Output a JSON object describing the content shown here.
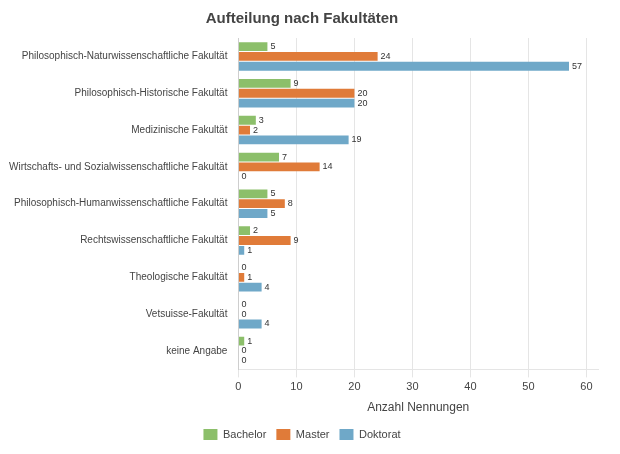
{
  "chart_data": {
    "type": "bar",
    "orientation": "horizontal",
    "title": "Aufteilung nach Fakultäten",
    "xlabel": "Anzahl Nennungen",
    "categories": [
      "Philosophisch-Naturwissenschaftliche Fakultät",
      "Philosophisch-Historische Fakultät",
      "Medizinische Fakultät",
      "Wirtschafts- und Sozialwissenschaftliche Fakultät",
      "Philosophisch-Humanwissenschaftliche Fakultät",
      "Rechtswissenschaftliche Fakultät",
      "Theologische Fakultät",
      "Vetsuisse-Fakultät",
      "keine Angabe"
    ],
    "series": [
      {
        "name": "Bachelor",
        "color": "#8CBF6A",
        "values": [
          5,
          9,
          3,
          7,
          5,
          2,
          0,
          0,
          1
        ]
      },
      {
        "name": "Master",
        "color": "#E07B39",
        "values": [
          24,
          20,
          2,
          14,
          8,
          9,
          1,
          0,
          0
        ]
      },
      {
        "name": "Doktorat",
        "color": "#6FA8C8",
        "values": [
          57,
          20,
          19,
          0,
          5,
          1,
          4,
          4,
          0
        ]
      }
    ],
    "xlim": [
      0,
      62
    ],
    "xticks": [
      0,
      10,
      20,
      30,
      40,
      50,
      60
    ],
    "grid": true,
    "legend": "bottom",
    "data_labels": true
  }
}
